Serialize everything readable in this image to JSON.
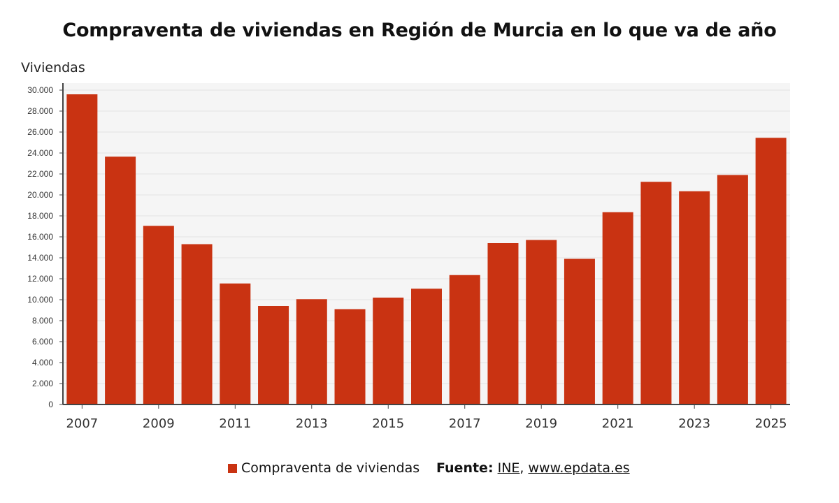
{
  "chart_data": {
    "type": "bar",
    "title": "Compraventa de viviendas en Región de Murcia en lo que va de año",
    "ylabel": "Viviendas",
    "xlabel": "",
    "categories": [
      "2007",
      "2008",
      "2009",
      "2010",
      "2011",
      "2012",
      "2013",
      "2014",
      "2015",
      "2016",
      "2017",
      "2018",
      "2019",
      "2020",
      "2021",
      "2022",
      "2023",
      "2024",
      "2025"
    ],
    "x_tick_labels": [
      "2007",
      "2009",
      "2011",
      "2013",
      "2015",
      "2017",
      "2019",
      "2021",
      "2023",
      "2025"
    ],
    "y_tick_labels": [
      "0",
      "2.000",
      "4.000",
      "6.000",
      "8.000",
      "10.000",
      "12.000",
      "14.000",
      "16.000",
      "18.000",
      "20.000",
      "22.000",
      "24.000",
      "26.000",
      "28.000",
      "30.000"
    ],
    "series": [
      {
        "name": "Compraventa de viviendas",
        "color": "#c93312",
        "values": [
          29600,
          23650,
          17050,
          15300,
          11550,
          9400,
          10050,
          9100,
          10200,
          11050,
          12350,
          15400,
          15700,
          13900,
          18350,
          21250,
          20350,
          21900,
          25450
        ]
      }
    ],
    "ylim": [
      0,
      30000
    ],
    "grid": true,
    "legend": "bottom"
  },
  "source": {
    "label": "Fuente:",
    "links": [
      "INE",
      "www.epdata.es"
    ],
    "separator": ","
  },
  "colors": {
    "bar": "#c93312",
    "plot_background": "#f5f5f5",
    "grid": "#e3e3e3",
    "axis": "#444444"
  }
}
